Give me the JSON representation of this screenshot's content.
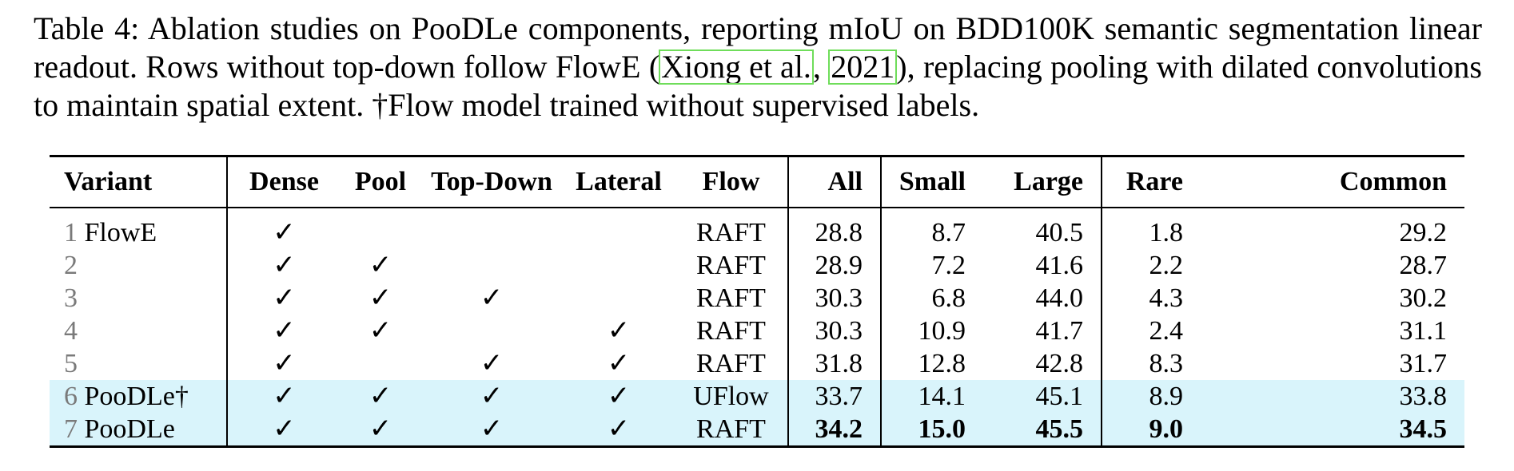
{
  "caption": {
    "before": "Table 4: Ablation studies on PooDLe components, reporting mIoU on BDD100K semantic segmentation linear readout. Rows without top-down follow FlowE (",
    "cite_author": "Xiong et al.",
    "cite_sep": ", ",
    "cite_year": "2021",
    "after": "), replacing pooling with dilated convolutions to maintain spatial extent. †Flow model trained without supervised labels."
  },
  "table": {
    "headers": [
      "Variant",
      "Dense",
      "Pool",
      "Top-Down",
      "Lateral",
      "Flow",
      "All",
      "Small",
      "Large",
      "Rare",
      "Common"
    ],
    "check_symbol": "✓",
    "rows": [
      {
        "idx": "1",
        "name": "FlowE",
        "dense": "✓",
        "pool": "",
        "topdown": "",
        "lateral": "",
        "flow": "RAFT",
        "all": "28.8",
        "small": "8.7",
        "large": "40.5",
        "rare": "1.8",
        "common": "29.2"
      },
      {
        "idx": "2",
        "name": "",
        "dense": "✓",
        "pool": "✓",
        "topdown": "",
        "lateral": "",
        "flow": "RAFT",
        "all": "28.9",
        "small": "7.2",
        "large": "41.6",
        "rare": "2.2",
        "common": "28.7"
      },
      {
        "idx": "3",
        "name": "",
        "dense": "✓",
        "pool": "✓",
        "topdown": "✓",
        "lateral": "",
        "flow": "RAFT",
        "all": "30.3",
        "small": "6.8",
        "large": "44.0",
        "rare": "4.3",
        "common": "30.2"
      },
      {
        "idx": "4",
        "name": "",
        "dense": "✓",
        "pool": "✓",
        "topdown": "",
        "lateral": "✓",
        "flow": "RAFT",
        "all": "30.3",
        "small": "10.9",
        "large": "41.7",
        "rare": "2.4",
        "common": "31.1"
      },
      {
        "idx": "5",
        "name": "",
        "dense": "✓",
        "pool": "",
        "topdown": "✓",
        "lateral": "✓",
        "flow": "RAFT",
        "all": "31.8",
        "small": "12.8",
        "large": "42.8",
        "rare": "8.3",
        "common": "31.7"
      },
      {
        "idx": "6",
        "name": "PooDLe†",
        "dense": "✓",
        "pool": "✓",
        "topdown": "✓",
        "lateral": "✓",
        "flow": "UFlow",
        "all": "33.7",
        "small": "14.1",
        "large": "45.1",
        "rare": "8.9",
        "common": "33.8"
      },
      {
        "idx": "7",
        "name": "PooDLe",
        "dense": "✓",
        "pool": "✓",
        "topdown": "✓",
        "lateral": "✓",
        "flow": "RAFT",
        "all": "34.2",
        "small": "15.0",
        "large": "45.5",
        "rare": "9.0",
        "common": "34.5"
      }
    ]
  },
  "colors": {
    "highlight_rows": "#d9f4fb",
    "citation_box": "#6fdd5a"
  }
}
